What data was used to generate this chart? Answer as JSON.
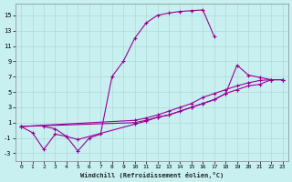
{
  "xlabel": "Windchill (Refroidissement éolien,°C)",
  "bg_color": "#c8f0f0",
  "grid_color": "#b0d8d8",
  "line_color": "#990099",
  "xlim": [
    -0.5,
    23.5
  ],
  "ylim": [
    -4,
    16.5
  ],
  "xticks": [
    0,
    1,
    2,
    3,
    4,
    5,
    6,
    7,
    8,
    9,
    10,
    11,
    12,
    13,
    14,
    15,
    16,
    17,
    18,
    19,
    20,
    21,
    22,
    23
  ],
  "yticks": [
    -3,
    -1,
    1,
    3,
    5,
    7,
    9,
    11,
    13,
    15
  ],
  "series1_x": [
    0,
    1,
    2,
    3,
    4,
    5,
    6,
    7,
    8,
    9,
    10,
    11,
    12,
    13,
    14,
    15,
    16,
    17
  ],
  "series1_y": [
    0.5,
    -0.3,
    -2.5,
    -0.5,
    -0.8,
    -2.7,
    -1.0,
    -0.5,
    7.0,
    9.0,
    12.0,
    14.0,
    15.0,
    15.3,
    15.5,
    15.6,
    15.7,
    12.2
  ],
  "series2_x": [
    0,
    10,
    11,
    12,
    13,
    14,
    15,
    16,
    17,
    18,
    19,
    20,
    21,
    22,
    23
  ],
  "series2_y": [
    0.5,
    1.3,
    1.6,
    2.0,
    2.5,
    3.0,
    3.5,
    4.3,
    4.8,
    5.3,
    5.8,
    6.2,
    6.5,
    6.6,
    6.6
  ],
  "series3_x": [
    0,
    10,
    11,
    12,
    13,
    14,
    15,
    16,
    17,
    18,
    19,
    20,
    21,
    22,
    23
  ],
  "series3_y": [
    0.5,
    1.0,
    1.3,
    1.7,
    2.0,
    2.5,
    3.0,
    3.5,
    4.0,
    4.8,
    8.5,
    7.2,
    6.9,
    6.6,
    6.6
  ],
  "series4_x": [
    2,
    3,
    4,
    5,
    10,
    11,
    12,
    13,
    14,
    15,
    16,
    17,
    18,
    19,
    20,
    21,
    22,
    23
  ],
  "series4_y": [
    0.5,
    0.2,
    -0.8,
    -1.2,
    0.8,
    1.2,
    1.7,
    2.0,
    2.5,
    3.0,
    3.5,
    4.0,
    4.8,
    5.3,
    5.8,
    6.0,
    6.6,
    6.6
  ]
}
